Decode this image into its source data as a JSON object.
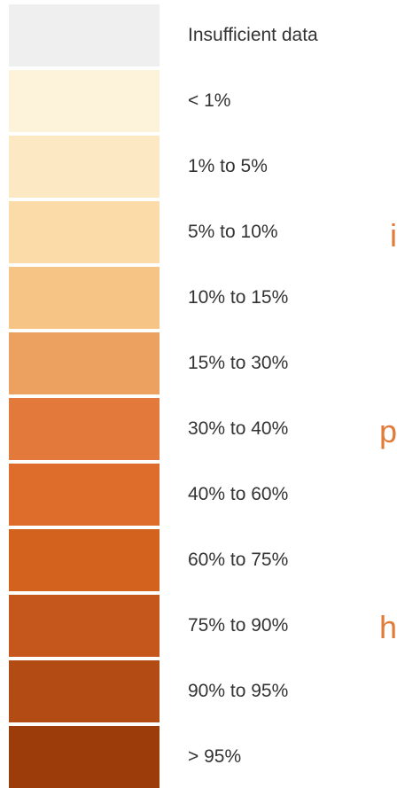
{
  "chart_data": {
    "type": "table",
    "legend": [
      {
        "label": "Insufficient data",
        "color": "#efefef"
      },
      {
        "label": "< 1%",
        "color": "#fdf2da"
      },
      {
        "label": "1% to 5%",
        "color": "#fde8c4"
      },
      {
        "label": "5% to 10%",
        "color": "#fbdca9"
      },
      {
        "label": "10% to 15%",
        "color": "#f6c586"
      },
      {
        "label": "15% to 30%",
        "color": "#eda161"
      },
      {
        "label": "30% to 40%",
        "color": "#e3793a"
      },
      {
        "label": "40% to 60%",
        "color": "#de6d2b"
      },
      {
        "label": "60% to 75%",
        "color": "#d4621f"
      },
      {
        "label": "75% to 90%",
        "color": "#c5571d"
      },
      {
        "label": "90% to 95%",
        "color": "#b24b14"
      },
      {
        "label": "> 95%",
        "color": "#9c3c0a"
      }
    ]
  },
  "cropped_text": {
    "line_1": "i",
    "line_2": "p",
    "line_3": "h"
  }
}
